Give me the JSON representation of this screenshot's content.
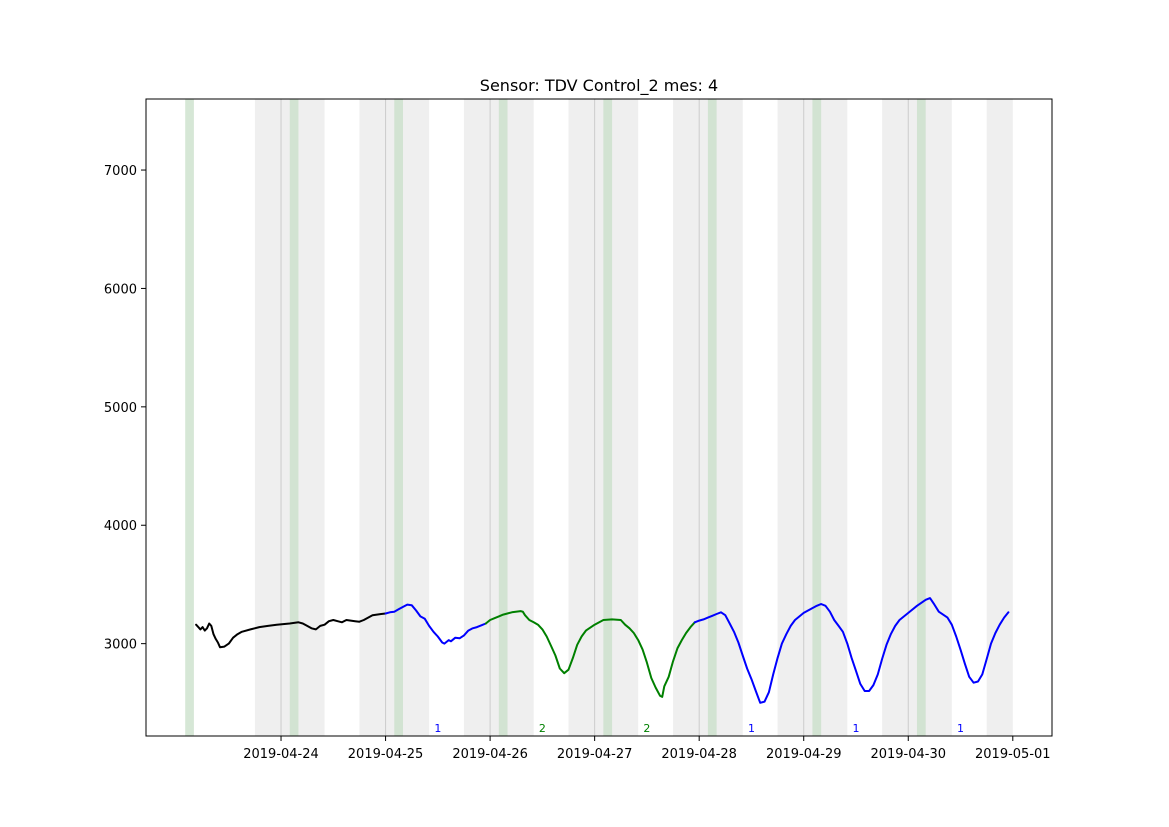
{
  "chart_data": {
    "type": "line",
    "title": "Sensor: TDV Control_2 mes: 4",
    "xlabel": "",
    "ylabel": "",
    "x_axis": "date",
    "xlim": [
      "2019-04-22 17:00",
      "2019-05-01 09:00"
    ],
    "ylim": [
      2220,
      7600
    ],
    "x_ticks": [
      "2019-04-24",
      "2019-04-25",
      "2019-04-26",
      "2019-04-27",
      "2019-04-28",
      "2019-04-29",
      "2019-04-30",
      "2019-05-01"
    ],
    "y_ticks": [
      3000,
      4000,
      5000,
      6000,
      7000
    ],
    "grid": false,
    "legend": "none",
    "colors": {
      "black": "#000000",
      "blue": "#0000ff",
      "green": "#008000",
      "gray_band": "#e8e8e8",
      "green_band": "#c8dfc8"
    },
    "gray_bands": [
      [
        "2019-04-23 18:00",
        "2019-04-24 10:00"
      ],
      [
        "2019-04-24 18:00",
        "2019-04-25 10:00"
      ],
      [
        "2019-04-25 18:00",
        "2019-04-26 10:00"
      ],
      [
        "2019-04-26 18:00",
        "2019-04-27 10:00"
      ],
      [
        "2019-04-27 18:00",
        "2019-04-28 10:00"
      ],
      [
        "2019-04-28 18:00",
        "2019-04-29 10:00"
      ],
      [
        "2019-04-29 18:00",
        "2019-04-30 10:00"
      ],
      [
        "2019-04-30 18:00",
        "2019-05-01 00:00"
      ]
    ],
    "green_bands": [
      [
        "2019-04-23 02:00",
        "2019-04-23 04:00"
      ],
      [
        "2019-04-24 02:00",
        "2019-04-24 04:00"
      ],
      [
        "2019-04-25 02:00",
        "2019-04-25 04:00"
      ],
      [
        "2019-04-26 02:00",
        "2019-04-26 04:00"
      ],
      [
        "2019-04-27 02:00",
        "2019-04-27 04:00"
      ],
      [
        "2019-04-28 02:00",
        "2019-04-28 04:00"
      ],
      [
        "2019-04-29 02:00",
        "2019-04-29 04:00"
      ],
      [
        "2019-04-30 02:00",
        "2019-04-30 04:00"
      ]
    ],
    "day_lines": [
      "2019-04-24 00:00",
      "2019-04-25 00:00",
      "2019-04-26 00:00",
      "2019-04-27 00:00",
      "2019-04-28 00:00",
      "2019-04-29 00:00",
      "2019-04-30 00:00"
    ],
    "annotations": [
      {
        "text": "1",
        "x": "2019-04-25 12:00",
        "color": "#0000ff"
      },
      {
        "text": "2",
        "x": "2019-04-26 12:00",
        "color": "#008000"
      },
      {
        "text": "2",
        "x": "2019-04-27 12:00",
        "color": "#008000"
      },
      {
        "text": "1",
        "x": "2019-04-28 12:00",
        "color": "#0000ff"
      },
      {
        "text": "1",
        "x": "2019-04-29 12:00",
        "color": "#0000ff"
      },
      {
        "text": "1",
        "x": "2019-04-30 12:00",
        "color": "#0000ff"
      }
    ],
    "series": [
      {
        "color": "#000000",
        "points": [
          [
            "2019-04-23 04:30",
            3160
          ],
          [
            "2019-04-23 05:00",
            3140
          ],
          [
            "2019-04-23 05:30",
            3120
          ],
          [
            "2019-04-23 06:00",
            3140
          ],
          [
            "2019-04-23 06:30",
            3110
          ],
          [
            "2019-04-23 07:00",
            3130
          ],
          [
            "2019-04-23 07:30",
            3170
          ],
          [
            "2019-04-23 08:00",
            3150
          ],
          [
            "2019-04-23 08:30",
            3080
          ],
          [
            "2019-04-23 09:00",
            3040
          ],
          [
            "2019-04-23 09:30",
            3010
          ],
          [
            "2019-04-23 10:00",
            2970
          ],
          [
            "2019-04-23 11:00",
            2975
          ],
          [
            "2019-04-23 12:00",
            3000
          ],
          [
            "2019-04-23 13:00",
            3050
          ],
          [
            "2019-04-23 14:00",
            3080
          ],
          [
            "2019-04-23 15:00",
            3100
          ],
          [
            "2019-04-23 17:00",
            3120
          ],
          [
            "2019-04-23 19:00",
            3140
          ],
          [
            "2019-04-23 21:00",
            3150
          ],
          [
            "2019-04-23 23:00",
            3160
          ],
          [
            "2019-04-24 02:00",
            3170
          ],
          [
            "2019-04-24 04:00",
            3180
          ],
          [
            "2019-04-24 05:00",
            3170
          ],
          [
            "2019-04-24 06:00",
            3150
          ],
          [
            "2019-04-24 07:00",
            3130
          ],
          [
            "2019-04-24 08:00",
            3120
          ],
          [
            "2019-04-24 09:00",
            3150
          ],
          [
            "2019-04-24 10:00",
            3160
          ],
          [
            "2019-04-24 11:00",
            3190
          ],
          [
            "2019-04-24 12:00",
            3200
          ],
          [
            "2019-04-24 13:00",
            3190
          ],
          [
            "2019-04-24 14:00",
            3180
          ],
          [
            "2019-04-24 15:00",
            3200
          ],
          [
            "2019-04-24 17:00",
            3190
          ],
          [
            "2019-04-24 18:00",
            3185
          ],
          [
            "2019-04-24 19:00",
            3200
          ],
          [
            "2019-04-24 21:00",
            3240
          ],
          [
            "2019-04-24 23:00",
            3250
          ],
          [
            "2019-04-25 00:00",
            3255
          ]
        ]
      },
      {
        "color": "#0000ff",
        "points": [
          [
            "2019-04-25 00:00",
            3255
          ],
          [
            "2019-04-25 01:00",
            3265
          ],
          [
            "2019-04-25 02:00",
            3270
          ],
          [
            "2019-04-25 03:00",
            3290
          ],
          [
            "2019-04-25 04:00",
            3310
          ],
          [
            "2019-04-25 05:00",
            3330
          ],
          [
            "2019-04-25 06:00",
            3325
          ],
          [
            "2019-04-25 07:00",
            3280
          ],
          [
            "2019-04-25 08:00",
            3230
          ],
          [
            "2019-04-25 09:00",
            3210
          ],
          [
            "2019-04-25 10:00",
            3150
          ],
          [
            "2019-04-25 11:00",
            3100
          ],
          [
            "2019-04-25 12:00",
            3060
          ],
          [
            "2019-04-25 13:00",
            3010
          ],
          [
            "2019-04-25 13:30",
            3000
          ],
          [
            "2019-04-25 14:30",
            3030
          ],
          [
            "2019-04-25 15:00",
            3020
          ],
          [
            "2019-04-25 16:00",
            3050
          ],
          [
            "2019-04-25 17:00",
            3045
          ],
          [
            "2019-04-25 18:00",
            3070
          ],
          [
            "2019-04-25 19:00",
            3110
          ],
          [
            "2019-04-25 20:00",
            3130
          ],
          [
            "2019-04-25 21:00",
            3140
          ],
          [
            "2019-04-25 22:00",
            3155
          ],
          [
            "2019-04-25 23:00",
            3170
          ]
        ]
      },
      {
        "color": "#008000",
        "points": [
          [
            "2019-04-25 23:00",
            3170
          ],
          [
            "2019-04-26 00:00",
            3200
          ],
          [
            "2019-04-26 01:00",
            3215
          ],
          [
            "2019-04-26 02:00",
            3230
          ],
          [
            "2019-04-26 03:00",
            3245
          ],
          [
            "2019-04-26 05:00",
            3265
          ],
          [
            "2019-04-26 07:00",
            3275
          ],
          [
            "2019-04-26 07:30",
            3270
          ],
          [
            "2019-04-26 08:00",
            3240
          ],
          [
            "2019-04-26 09:00",
            3200
          ],
          [
            "2019-04-26 10:00",
            3180
          ],
          [
            "2019-04-26 11:00",
            3160
          ],
          [
            "2019-04-26 12:00",
            3120
          ],
          [
            "2019-04-26 13:00",
            3060
          ],
          [
            "2019-04-26 14:00",
            2980
          ],
          [
            "2019-04-26 15:00",
            2900
          ],
          [
            "2019-04-26 16:00",
            2790
          ],
          [
            "2019-04-26 17:00",
            2750
          ],
          [
            "2019-04-26 18:00",
            2780
          ],
          [
            "2019-04-26 19:00",
            2880
          ],
          [
            "2019-04-26 20:00",
            2990
          ],
          [
            "2019-04-26 21:00",
            3060
          ],
          [
            "2019-04-26 22:00",
            3110
          ],
          [
            "2019-04-27 00:00",
            3160
          ],
          [
            "2019-04-27 02:00",
            3200
          ],
          [
            "2019-04-27 04:00",
            3205
          ],
          [
            "2019-04-27 06:00",
            3200
          ],
          [
            "2019-04-27 07:00",
            3160
          ],
          [
            "2019-04-27 08:00",
            3130
          ],
          [
            "2019-04-27 09:00",
            3090
          ],
          [
            "2019-04-27 10:00",
            3030
          ],
          [
            "2019-04-27 11:00",
            2950
          ],
          [
            "2019-04-27 12:00",
            2840
          ],
          [
            "2019-04-27 13:00",
            2710
          ],
          [
            "2019-04-27 14:00",
            2630
          ],
          [
            "2019-04-27 15:00",
            2560
          ],
          [
            "2019-04-27 15:30",
            2550
          ],
          [
            "2019-04-27 16:00",
            2640
          ],
          [
            "2019-04-27 17:00",
            2720
          ],
          [
            "2019-04-27 18:00",
            2850
          ],
          [
            "2019-04-27 19:00",
            2960
          ],
          [
            "2019-04-27 20:00",
            3030
          ],
          [
            "2019-04-27 21:00",
            3090
          ],
          [
            "2019-04-27 22:00",
            3140
          ],
          [
            "2019-04-27 23:00",
            3180
          ]
        ]
      },
      {
        "color": "#0000ff",
        "points": [
          [
            "2019-04-27 23:00",
            3180
          ],
          [
            "2019-04-28 00:00",
            3195
          ],
          [
            "2019-04-28 01:00",
            3205
          ],
          [
            "2019-04-28 02:00",
            3220
          ],
          [
            "2019-04-28 03:00",
            3235
          ],
          [
            "2019-04-28 04:00",
            3250
          ],
          [
            "2019-04-28 05:00",
            3265
          ],
          [
            "2019-04-28 06:00",
            3240
          ],
          [
            "2019-04-28 07:00",
            3170
          ],
          [
            "2019-04-28 08:00",
            3100
          ],
          [
            "2019-04-28 09:00",
            3010
          ],
          [
            "2019-04-28 10:00",
            2900
          ],
          [
            "2019-04-28 11:00",
            2790
          ],
          [
            "2019-04-28 12:00",
            2700
          ],
          [
            "2019-04-28 13:00",
            2600
          ],
          [
            "2019-04-28 14:00",
            2500
          ],
          [
            "2019-04-28 15:00",
            2510
          ],
          [
            "2019-04-28 16:00",
            2590
          ],
          [
            "2019-04-28 17:00",
            2740
          ],
          [
            "2019-04-28 18:00",
            2880
          ],
          [
            "2019-04-28 19:00",
            3000
          ],
          [
            "2019-04-28 20:00",
            3080
          ],
          [
            "2019-04-28 21:00",
            3150
          ],
          [
            "2019-04-28 22:00",
            3200
          ],
          [
            "2019-04-29 00:00",
            3260
          ],
          [
            "2019-04-29 02:00",
            3300
          ],
          [
            "2019-04-29 03:00",
            3320
          ],
          [
            "2019-04-29 04:00",
            3335
          ],
          [
            "2019-04-29 05:00",
            3320
          ],
          [
            "2019-04-29 06:00",
            3270
          ],
          [
            "2019-04-29 07:00",
            3200
          ],
          [
            "2019-04-29 08:00",
            3150
          ],
          [
            "2019-04-29 09:00",
            3100
          ],
          [
            "2019-04-29 10:00",
            3000
          ],
          [
            "2019-04-29 11:00",
            2880
          ],
          [
            "2019-04-29 12:00",
            2770
          ],
          [
            "2019-04-29 13:00",
            2660
          ],
          [
            "2019-04-29 14:00",
            2600
          ],
          [
            "2019-04-29 15:00",
            2600
          ],
          [
            "2019-04-29 16:00",
            2650
          ],
          [
            "2019-04-29 17:00",
            2740
          ],
          [
            "2019-04-29 18:00",
            2870
          ],
          [
            "2019-04-29 19:00",
            2990
          ],
          [
            "2019-04-29 20:00",
            3080
          ],
          [
            "2019-04-29 21:00",
            3150
          ],
          [
            "2019-04-29 22:00",
            3200
          ],
          [
            "2019-04-30 00:00",
            3260
          ],
          [
            "2019-04-30 02:00",
            3320
          ],
          [
            "2019-04-30 04:00",
            3370
          ],
          [
            "2019-04-30 05:00",
            3385
          ],
          [
            "2019-04-30 06:00",
            3330
          ],
          [
            "2019-04-30 07:00",
            3270
          ],
          [
            "2019-04-30 09:00",
            3220
          ],
          [
            "2019-04-30 10:00",
            3160
          ],
          [
            "2019-04-30 11:00",
            3060
          ],
          [
            "2019-04-30 12:00",
            2950
          ],
          [
            "2019-04-30 13:00",
            2830
          ],
          [
            "2019-04-30 14:00",
            2720
          ],
          [
            "2019-04-30 15:00",
            2670
          ],
          [
            "2019-04-30 16:00",
            2680
          ],
          [
            "2019-04-30 17:00",
            2740
          ],
          [
            "2019-04-30 18:00",
            2870
          ],
          [
            "2019-04-30 19:00",
            3000
          ],
          [
            "2019-04-30 20:00",
            3090
          ],
          [
            "2019-04-30 21:00",
            3160
          ],
          [
            "2019-04-30 22:00",
            3220
          ],
          [
            "2019-04-30 23:00",
            3265
          ]
        ]
      }
    ]
  }
}
